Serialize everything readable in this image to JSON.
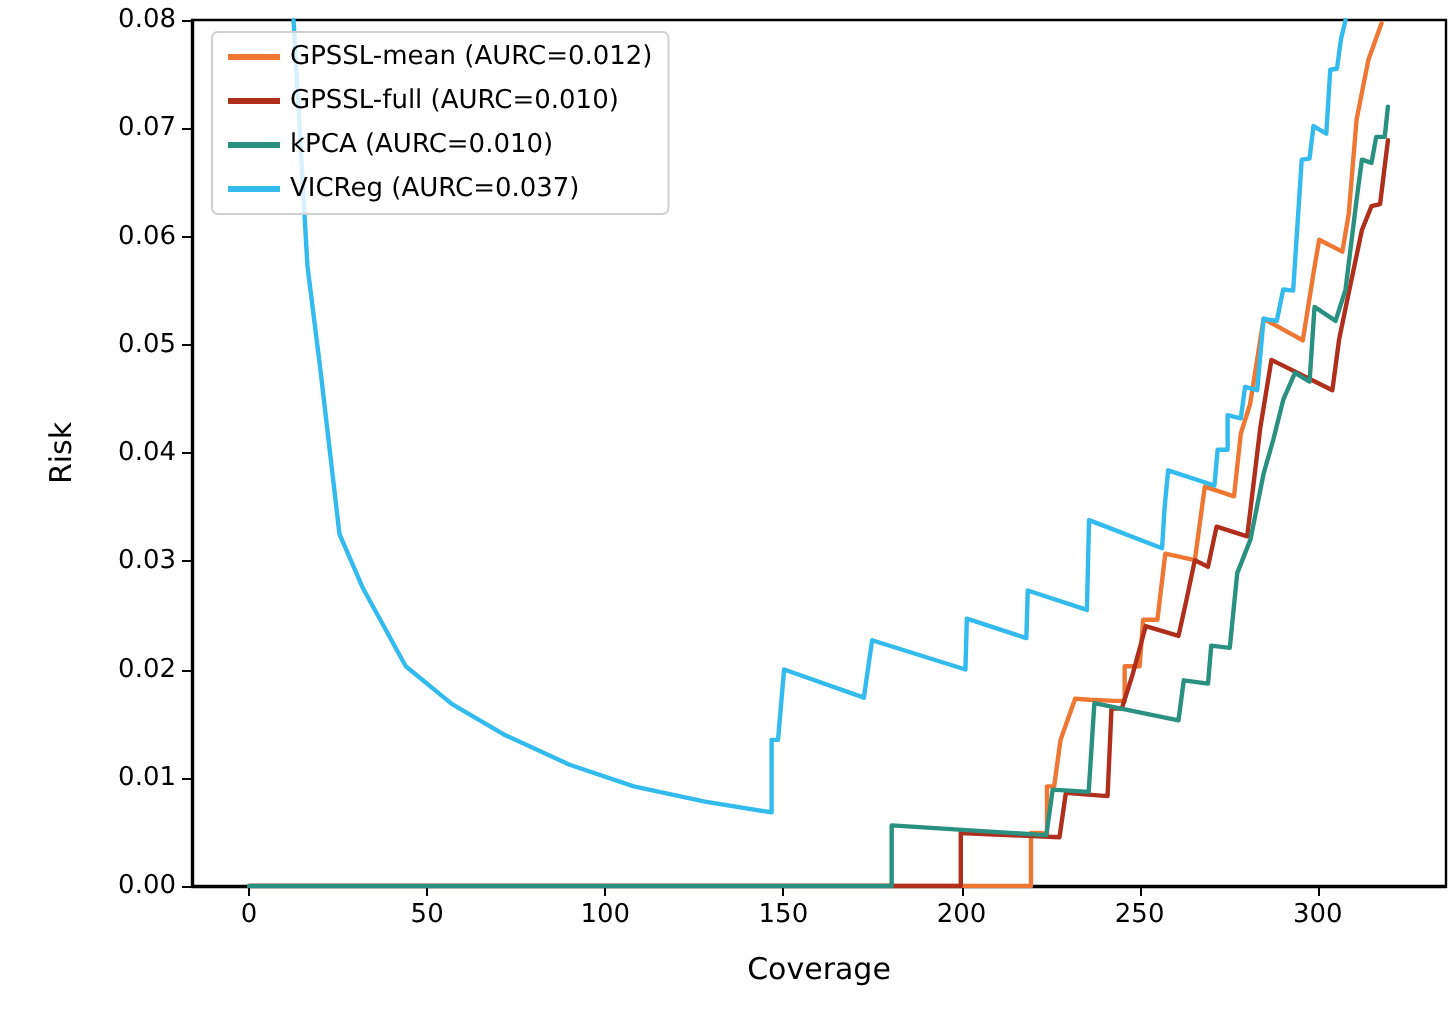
{
  "chart_data": {
    "type": "line",
    "xlabel": "Coverage",
    "ylabel": "Risk",
    "xlim": [
      -16,
      336
    ],
    "ylim": [
      0,
      0.08
    ],
    "xticks": [
      0,
      50,
      100,
      150,
      200,
      250,
      300
    ],
    "yticks": [
      {
        "value": 0,
        "label": "0.00"
      },
      {
        "value": 0.01,
        "label": "0.01"
      },
      {
        "value": 0.02,
        "label": "0.02"
      },
      {
        "value": 0.03,
        "label": "0.03"
      },
      {
        "value": 0.04,
        "label": "0.04"
      },
      {
        "value": 0.05,
        "label": "0.05"
      },
      {
        "value": 0.06,
        "label": "0.06"
      },
      {
        "value": 0.07,
        "label": "0.07"
      },
      {
        "value": 0.08,
        "label": "0.08"
      }
    ],
    "grid": false,
    "legend": "top left",
    "marker": "none",
    "line_style": "solid",
    "series": [
      {
        "name": "GPSSL-mean (AURC=0.012)",
        "color": "#ee7733",
        "x": [
          0,
          219.5,
          219.5,
          222,
          224,
          224,
          226,
          227.8,
          227.8,
          231.9,
          236,
          243,
          245.8,
          245.8,
          250,
          251,
          255,
          257.2,
          265.5,
          265.5,
          268.3,
          276.5,
          276.5,
          278.4,
          281,
          284.8,
          295.8,
          295.8,
          298.8,
          300.4,
          306.9,
          306.9,
          308.7,
          310.9,
          314.2,
          317.9
        ],
        "values": [
          0,
          0,
          0.0049,
          0.0049,
          0.0048,
          0.0092,
          0.0092,
          0.0135,
          0.0135,
          0.0173,
          0.0172,
          0.0171,
          0.0171,
          0.0203,
          0.0203,
          0.0246,
          0.0246,
          0.0307,
          0.0301,
          0.0301,
          0.0369,
          0.036,
          0.036,
          0.0418,
          0.0445,
          0.0524,
          0.0504,
          0.0504,
          0.0566,
          0.0597,
          0.0586,
          0.0586,
          0.0621,
          0.0708,
          0.0763,
          0.0797
        ]
      },
      {
        "name": "GPSSL-full (AURC=0.010)",
        "color": "#b02e1c",
        "x": [
          0,
          199.8,
          199.8,
          227.5,
          227.5,
          229.3,
          241,
          241,
          242.1,
          245,
          248,
          251.7,
          260.9,
          260.9,
          263,
          265.5,
          269.2,
          269.2,
          271.6,
          280.2,
          280.2,
          283.9,
          287,
          304.1,
          304.1,
          306,
          308.7,
          312.4,
          315.1,
          317.5,
          319.7
        ],
        "values": [
          0,
          0,
          0.0049,
          0.0045,
          0.0045,
          0.0086,
          0.0083,
          0.0083,
          0.0164,
          0.0164,
          0.0195,
          0.024,
          0.0231,
          0.0231,
          0.0262,
          0.0301,
          0.0295,
          0.0295,
          0.0332,
          0.0323,
          0.0323,
          0.0424,
          0.0486,
          0.0458,
          0.0458,
          0.0505,
          0.0548,
          0.0606,
          0.0628,
          0.063,
          0.0689
        ]
      },
      {
        "name": "kPCA (AURC=0.010)",
        "color": "#2a9080",
        "x": [
          0,
          180.4,
          180.4,
          223.8,
          223.8,
          225.6,
          235.7,
          235.7,
          237.3,
          260.9,
          260.9,
          262.4,
          269.2,
          269.2,
          270.1,
          275.3,
          275.3,
          277.4,
          281.1,
          284.8,
          287.5,
          290.3,
          293.6,
          297.7,
          297.7,
          299.1,
          305,
          305,
          307.8,
          310.9,
          312.4,
          315.1,
          315.1,
          316.4,
          318.8,
          318.8,
          319.7
        ],
        "values": [
          0,
          0,
          0.0056,
          0.0047,
          0.0047,
          0.0089,
          0.0087,
          0.0087,
          0.0169,
          0.0153,
          0.0153,
          0.019,
          0.0187,
          0.0187,
          0.0222,
          0.022,
          0.022,
          0.0289,
          0.032,
          0.0381,
          0.0412,
          0.0449,
          0.0474,
          0.0466,
          0.0466,
          0.0535,
          0.0522,
          0.0522,
          0.0551,
          0.0634,
          0.0671,
          0.0668,
          0.0668,
          0.0692,
          0.0692,
          0.0692,
          0.072
        ]
      },
      {
        "name": "VICReg (AURC=0.037)",
        "color": "#33bbee",
        "x": [
          12.5,
          16.4,
          20,
          25.4,
          32,
          44,
          57,
          71.5,
          90,
          108,
          128,
          146.7,
          146.7,
          148.5,
          150.2,
          172.6,
          172.6,
          174.9,
          201.1,
          201.1,
          201.5,
          218.2,
          218.2,
          218.6,
          235.2,
          235.2,
          235.8,
          256.3,
          256.3,
          257,
          258,
          271,
          271,
          271.9,
          274.7,
          274.7,
          278.4,
          279.6,
          283,
          284.8,
          288.5,
          290.3,
          293.1,
          295.5,
          297.7,
          298.8,
          302.4,
          303.5,
          305.4,
          306.5,
          307.8
        ],
        "values": [
          0.08,
          0.0573,
          0.0478,
          0.0325,
          0.0275,
          0.0203,
          0.0168,
          0.014,
          0.0112,
          0.0092,
          0.0078,
          0.0068,
          0.0135,
          0.0135,
          0.02,
          0.0174,
          0.0174,
          0.0227,
          0.02,
          0.02,
          0.0247,
          0.0229,
          0.0229,
          0.0273,
          0.0255,
          0.0255,
          0.0338,
          0.0312,
          0.0312,
          0.0349,
          0.0384,
          0.037,
          0.037,
          0.0403,
          0.0403,
          0.0435,
          0.0432,
          0.0461,
          0.0458,
          0.0524,
          0.0522,
          0.0551,
          0.055,
          0.0671,
          0.0672,
          0.0702,
          0.0695,
          0.0754,
          0.0755,
          0.0782,
          0.08
        ]
      }
    ]
  }
}
